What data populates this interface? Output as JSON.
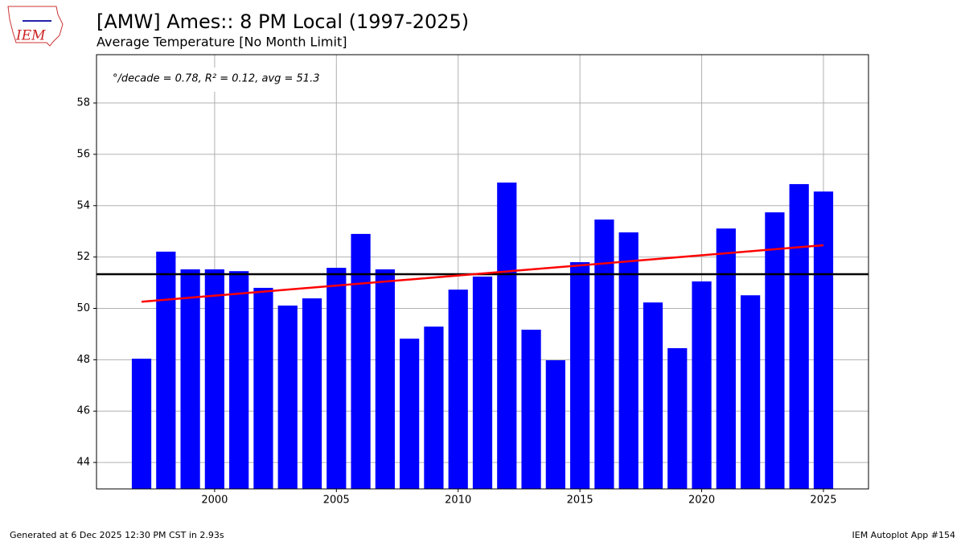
{
  "logo": "IEM",
  "footer_left": "Generated at 6 Dec 2025 12:30 PM CST in 2.93s",
  "footer_right": "IEM Autoplot App #154",
  "chart_data": {
    "type": "bar",
    "title": "[AMW] Ames:: 8 PM Local (1997-2025)",
    "subtitle": "Average Temperature [No Month Limit]",
    "annotation": "°/decade = 0.78, R² = 0.12, avg = 51.3",
    "x": [
      1997,
      1998,
      1999,
      2000,
      2001,
      2002,
      2003,
      2004,
      2005,
      2006,
      2007,
      2008,
      2009,
      2010,
      2011,
      2012,
      2013,
      2014,
      2015,
      2016,
      2017,
      2018,
      2019,
      2020,
      2021,
      2022,
      2023,
      2024,
      2025
    ],
    "values": [
      48.04,
      52.21,
      51.52,
      51.52,
      51.45,
      50.8,
      50.11,
      50.39,
      51.58,
      52.9,
      51.52,
      48.82,
      49.29,
      50.73,
      51.24,
      54.9,
      49.17,
      47.98,
      51.8,
      53.46,
      52.96,
      50.23,
      48.45,
      51.05,
      53.11,
      50.51,
      53.74,
      54.84,
      54.55
    ],
    "color": "#0000ff",
    "trend": {
      "x": [
        1997,
        2025
      ],
      "values": [
        50.26,
        52.46
      ],
      "color": "#ff0000"
    },
    "average": {
      "value": 51.33,
      "color": "#000000"
    },
    "xlim": [
      1995.15,
      2026.85
    ],
    "xticks": [
      2000,
      2005,
      2010,
      2015,
      2020,
      2025
    ],
    "ylim": [
      42.97,
      59.88
    ],
    "yticks": [
      44,
      46,
      48,
      50,
      52,
      54,
      56,
      58
    ],
    "grid": true
  }
}
